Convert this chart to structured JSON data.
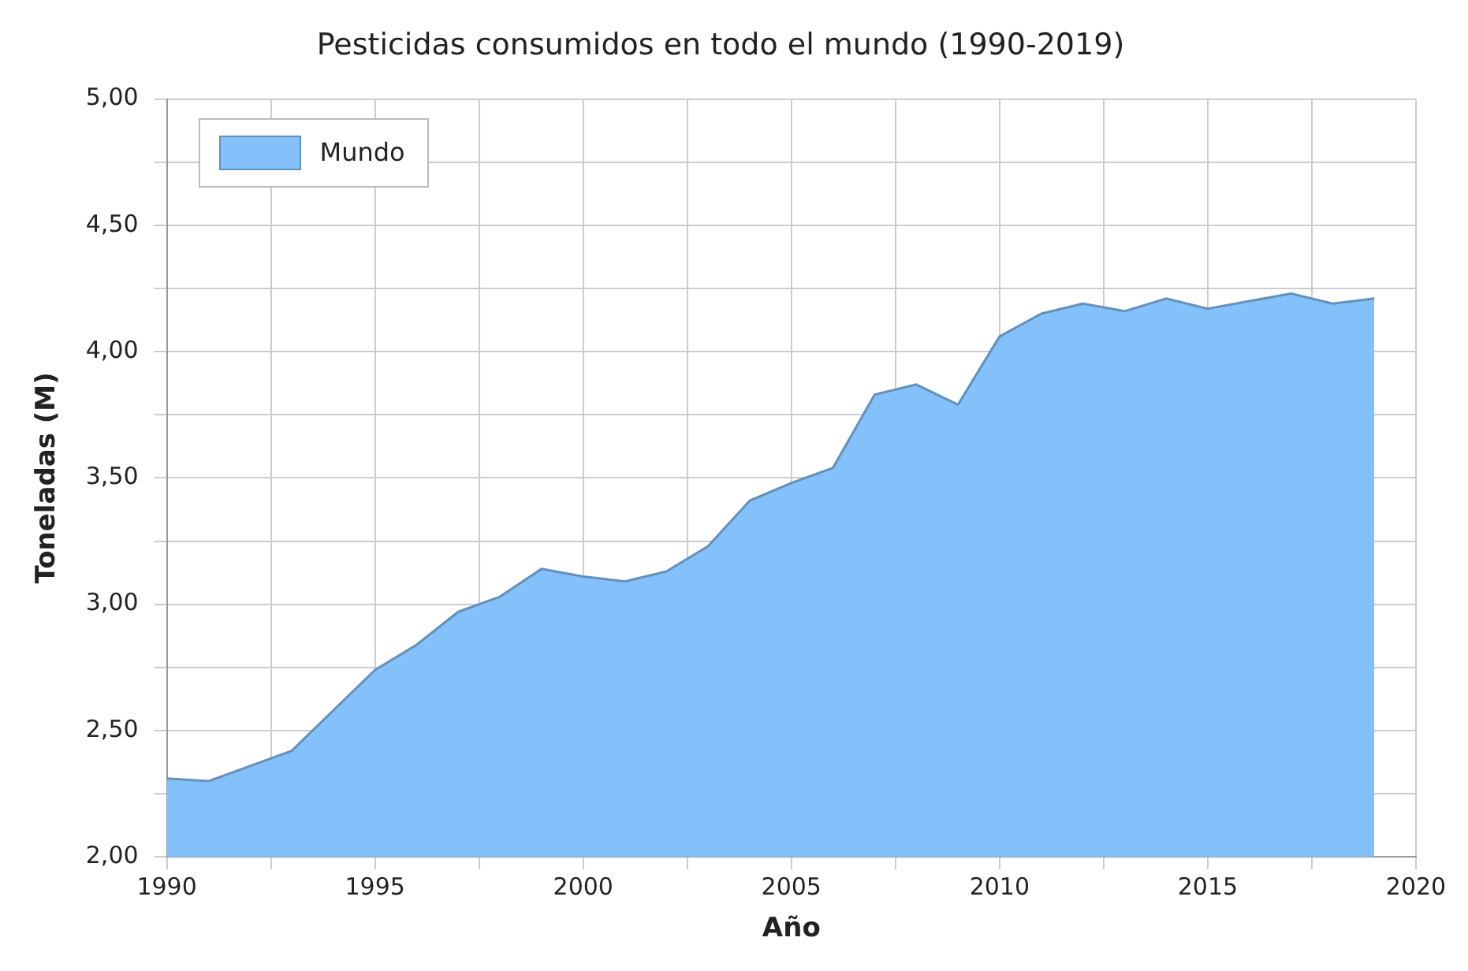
{
  "chart_data": {
    "type": "area",
    "title": "Pesticidas consumidos en todo el mundo (1990-2019)",
    "xlabel": "Año",
    "ylabel": "Toneladas (M)",
    "x": [
      1990,
      1991,
      1992,
      1993,
      1994,
      1995,
      1996,
      1997,
      1998,
      1999,
      2000,
      2001,
      2002,
      2003,
      2004,
      2005,
      2006,
      2007,
      2008,
      2009,
      2010,
      2011,
      2012,
      2013,
      2014,
      2015,
      2016,
      2017,
      2018,
      2019
    ],
    "series": [
      {
        "name": "Mundo",
        "color": "#84c0fa",
        "values": [
          2.31,
          2.3,
          2.36,
          2.42,
          2.58,
          2.74,
          2.84,
          2.97,
          3.03,
          3.14,
          3.11,
          3.09,
          3.13,
          3.23,
          3.41,
          3.48,
          3.54,
          3.83,
          3.87,
          3.79,
          4.06,
          4.15,
          4.19,
          4.16,
          4.21,
          4.17,
          4.2,
          4.23,
          4.19,
          4.21
        ]
      }
    ],
    "xlim": [
      1990,
      2020
    ],
    "xticks": [
      1990,
      {
        "value": 1992.5,
        "label": null
      },
      1995,
      {
        "value": 1997.5,
        "label": null
      },
      2000,
      {
        "value": 2002.5,
        "label": null
      },
      2005,
      {
        "value": 2007.5,
        "label": null
      },
      2010,
      {
        "value": 2012.5,
        "label": null
      },
      2015,
      {
        "value": 2017.5,
        "label": null
      },
      2020
    ],
    "ylim": [
      2,
      5
    ],
    "yticks": [
      {
        "value": 2,
        "label": "2,00"
      },
      {
        "value": 2.25,
        "label": null
      },
      {
        "value": 2.5,
        "label": "2,50"
      },
      {
        "value": 2.75,
        "label": null
      },
      {
        "value": 3,
        "label": "3,00"
      },
      {
        "value": 3.25,
        "label": null
      },
      {
        "value": 3.5,
        "label": "3,50"
      },
      {
        "value": 3.75,
        "label": null
      },
      {
        "value": 4,
        "label": "4,00"
      },
      {
        "value": 4.25,
        "label": null
      },
      {
        "value": 4.5,
        "label": "4,50"
      },
      {
        "value": 4.75,
        "label": null
      },
      {
        "value": 5,
        "label": "5,00"
      }
    ],
    "grid": true,
    "legend": "top left"
  }
}
